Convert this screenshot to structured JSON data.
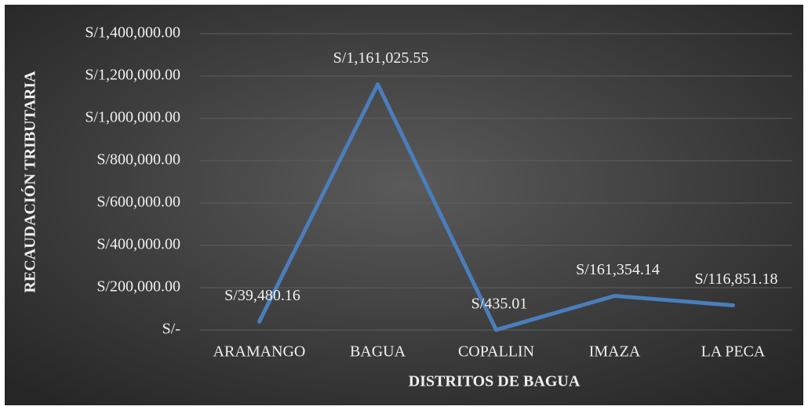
{
  "chart_data": {
    "type": "line",
    "categories": [
      "ARAMANGO",
      "BAGUA",
      "COPALLIN",
      "IMAZA",
      "LA PECA"
    ],
    "series": [
      {
        "name": "RECAUDACIÓN TRIBUTARIA",
        "color": "#4a7ebb",
        "values": [
          39480.16,
          1161025.55,
          435.01,
          161354.14,
          116851.18
        ],
        "value_labels": [
          "S/39,480.16",
          "S/1,161,025.55",
          "S/435.01",
          "S/161,354.14",
          "S/116,851.18"
        ]
      }
    ],
    "xlabel": "DISTRITOS DE BAGUA",
    "ylabel": "RECAUDACIÓN TRIBUTARIA",
    "ylim": [
      0,
      1400000
    ],
    "yticks": [
      {
        "value": 0,
        "label": "S/-"
      },
      {
        "value": 200000,
        "label": "S/200,000.00"
      },
      {
        "value": 400000,
        "label": "S/400,000.00"
      },
      {
        "value": 600000,
        "label": "S/600,000.00"
      },
      {
        "value": 800000,
        "label": "S/800,000.00"
      },
      {
        "value": 1000000,
        "label": "S/1,000,000.00"
      },
      {
        "value": 1200000,
        "label": "S/1,200,000.00"
      },
      {
        "value": 1400000,
        "label": "S/1,400,000.00"
      }
    ],
    "grid": true
  }
}
